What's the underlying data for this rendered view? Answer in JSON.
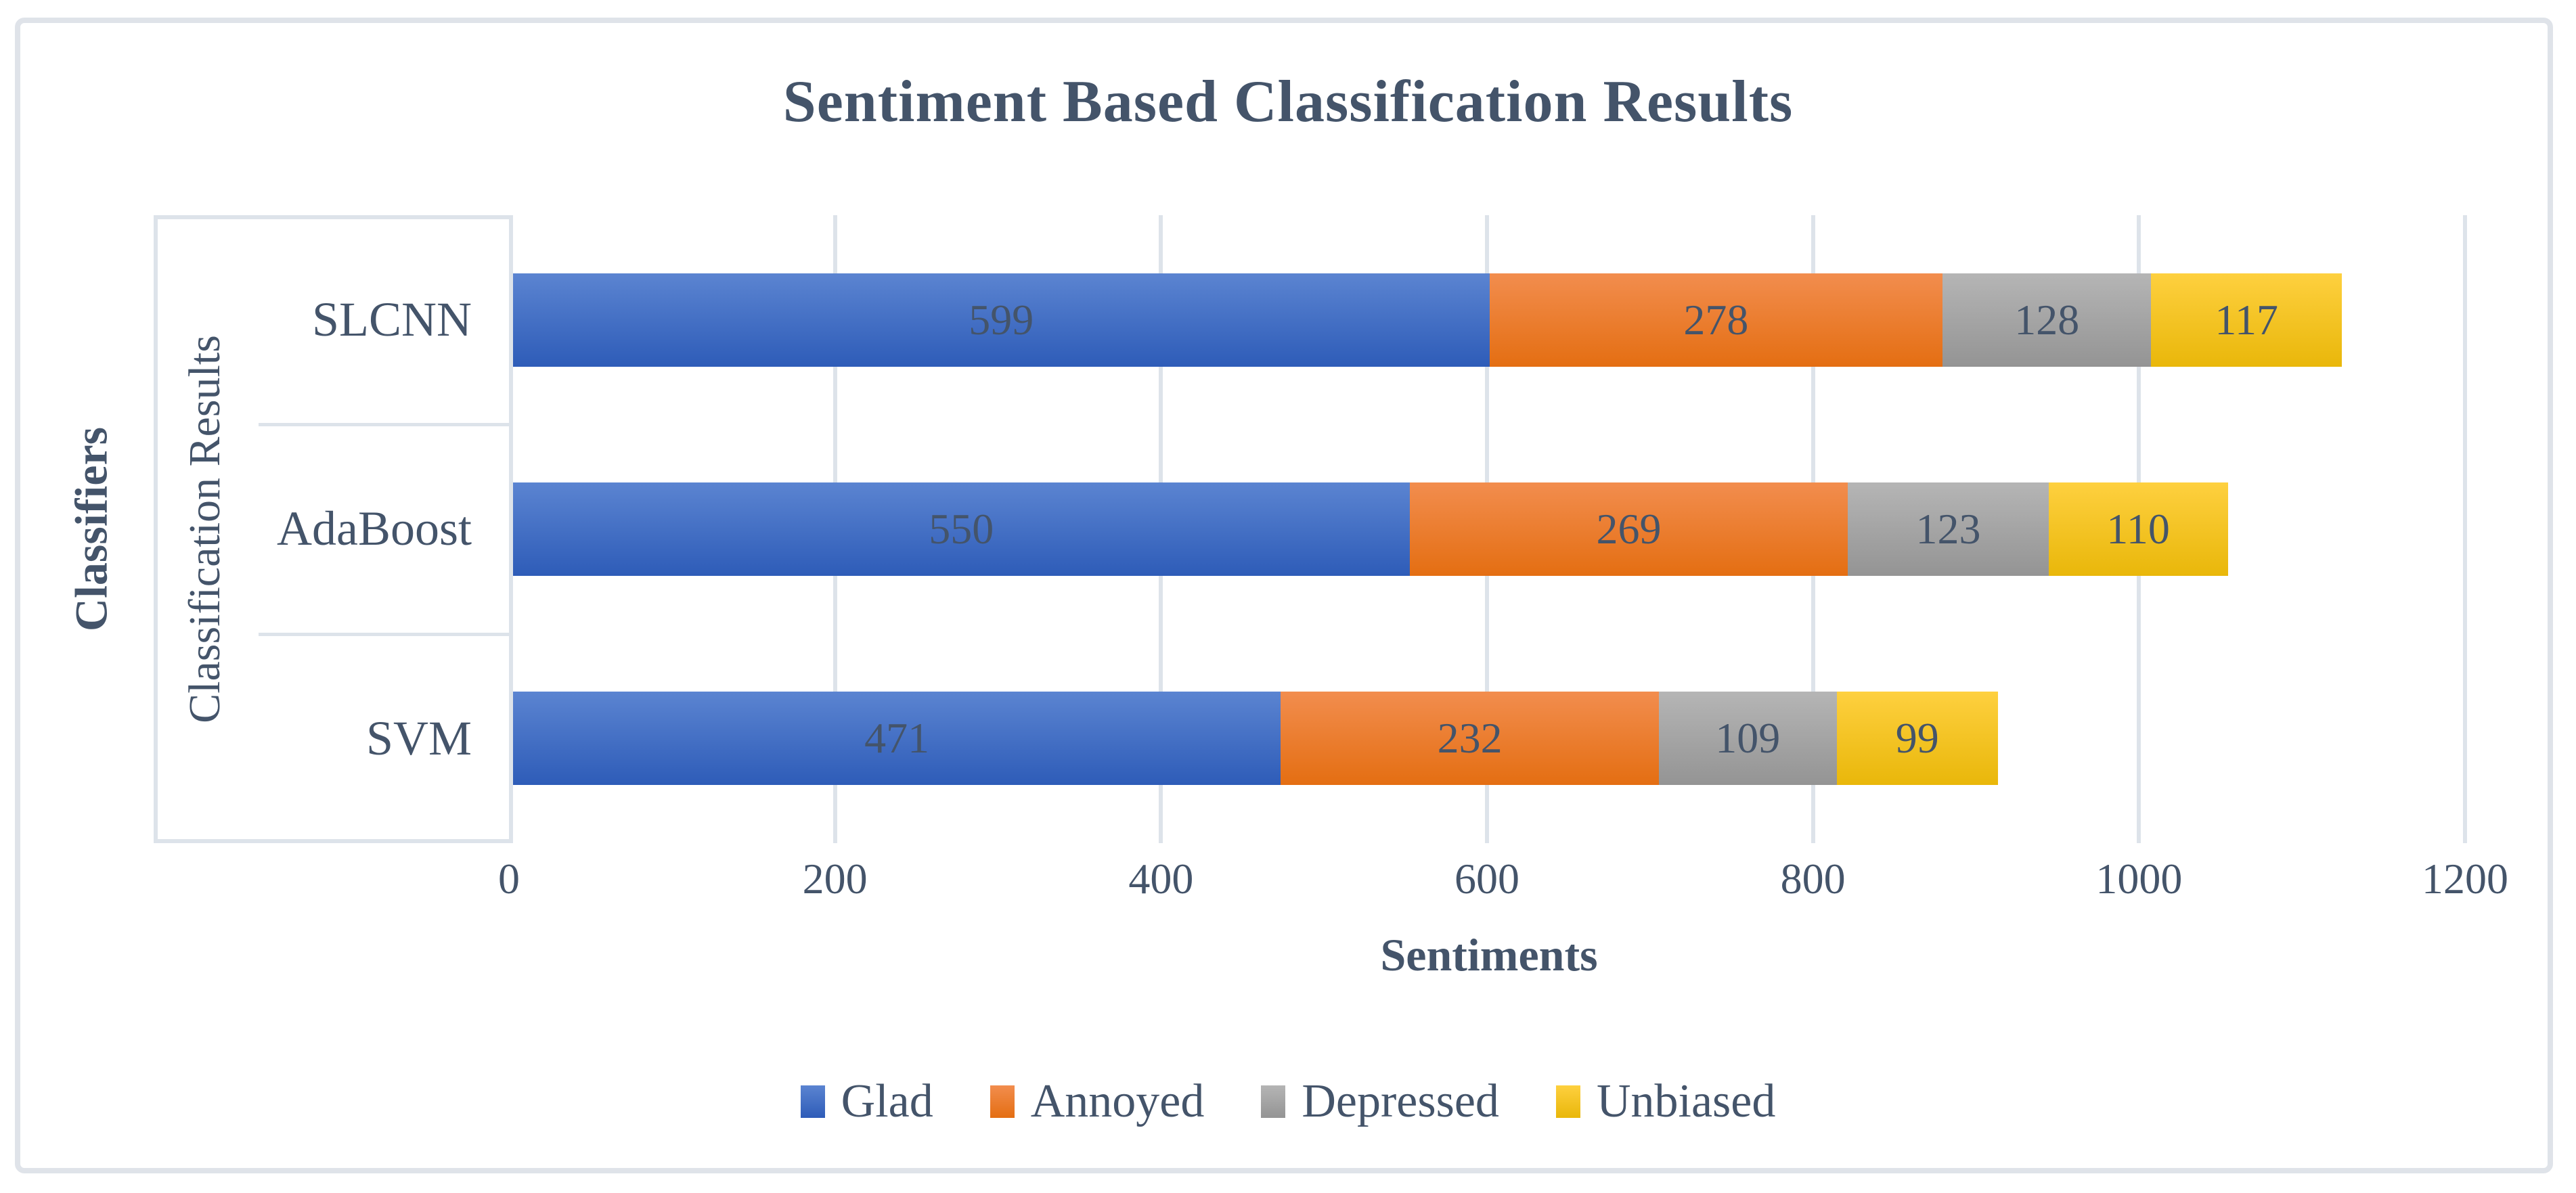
{
  "chart_data": {
    "type": "bar",
    "orientation": "horizontal",
    "stacked": true,
    "title": "Sentiment Based Classification Results",
    "xlabel": "Sentiments",
    "ylabel": "Classifiers",
    "group_label": "Classification Results",
    "categories": [
      "SLCNN",
      "AdaBoost",
      "SVM"
    ],
    "series": [
      {
        "name": "Glad",
        "values": [
          599,
          550,
          471
        ],
        "color_top": "#5b84d1",
        "color_bottom": "#2e5cb8"
      },
      {
        "name": "Annoyed",
        "values": [
          278,
          269,
          232
        ],
        "color_top": "#f28d4e",
        "color_bottom": "#e46e12"
      },
      {
        "name": "Depressed",
        "values": [
          128,
          123,
          109
        ],
        "color_top": "#b5b5b5",
        "color_bottom": "#949494"
      },
      {
        "name": "Unbiased",
        "values": [
          117,
          110,
          99
        ],
        "color_top": "#fed03f",
        "color_bottom": "#e9b70a"
      }
    ],
    "xlim": [
      0,
      1200
    ],
    "xticks": [
      0,
      200,
      400,
      600,
      800,
      1000,
      1200
    ],
    "grid": true,
    "legend_position": "bottom",
    "colors": {
      "text": "#44546A",
      "frame_border": "#dfe3e9",
      "gridline": "#dde3ea"
    }
  }
}
